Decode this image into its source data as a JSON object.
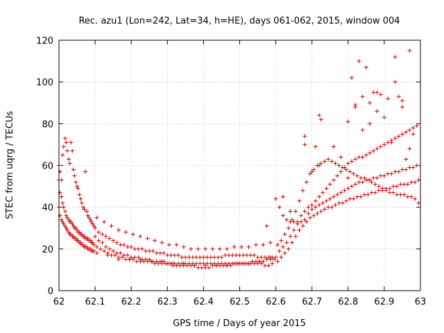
{
  "chart_data": {
    "type": "scatter",
    "title": "Rec. azu1 (Lon=242, Lat=34, h=HE), days 061-062, 2015, window 004",
    "xlabel": "GPS time / Days of year 2015",
    "ylabel": "STEC from uqrg / TECUs",
    "xlim": [
      62,
      63
    ],
    "ylim": [
      0,
      120
    ],
    "xticks": [
      62,
      62.1,
      62.2,
      62.3,
      62.4,
      62.5,
      62.6,
      62.7,
      62.8,
      62.9,
      63
    ],
    "xtick_labels": [
      "62",
      "62.1",
      "62.2",
      "62.3",
      "62.4",
      "62.5",
      "62.6",
      "62.7",
      "62.8",
      "62.9",
      "63"
    ],
    "yticks": [
      0,
      20,
      40,
      60,
      80,
      100,
      120
    ],
    "ytick_labels": [
      "0",
      "20",
      "40",
      "60",
      "80",
      "100",
      "120"
    ],
    "grid": true,
    "marker": "plus",
    "color": "#c80000",
    "x": [
      62.0,
      62.003,
      62.007,
      62.01,
      62.013,
      62.017,
      62.02,
      62.023,
      62.027,
      62.03,
      62.033,
      62.037,
      62.04,
      62.043,
      62.047,
      62.05,
      62.053,
      62.057,
      62.06,
      62.063,
      62.067,
      62.07,
      62.073,
      62.077,
      62.08,
      62.083,
      62.087,
      62.09,
      62.093,
      62.097,
      62.0,
      62.003,
      62.007,
      62.01,
      62.013,
      62.017,
      62.02,
      62.023,
      62.027,
      62.03,
      62.033,
      62.037,
      62.04,
      62.043,
      62.047,
      62.05,
      62.053,
      62.057,
      62.06,
      62.063,
      62.067,
      62.07,
      62.073,
      62.077,
      62.08,
      62.083,
      62.087,
      62.09,
      62.093,
      62.097,
      62.0,
      62.003,
      62.007,
      62.01,
      62.013,
      62.017,
      62.02,
      62.023,
      62.027,
      62.03,
      62.033,
      62.037,
      62.04,
      62.043,
      62.047,
      62.05,
      62.053,
      62.057,
      62.06,
      62.063,
      62.067,
      62.07,
      62.073,
      62.077,
      62.08,
      62.083,
      62.087,
      62.09,
      62.093,
      62.097,
      62.1,
      62.11,
      62.12,
      62.13,
      62.14,
      62.15,
      62.16,
      62.17,
      62.18,
      62.19,
      62.2,
      62.21,
      62.22,
      62.23,
      62.24,
      62.25,
      62.26,
      62.27,
      62.28,
      62.29,
      62.3,
      62.31,
      62.32,
      62.33,
      62.34,
      62.35,
      62.36,
      62.37,
      62.38,
      62.39,
      62.4,
      62.41,
      62.42,
      62.43,
      62.44,
      62.45,
      62.46,
      62.47,
      62.48,
      62.49,
      62.5,
      62.51,
      62.52,
      62.53,
      62.54,
      62.55,
      62.56,
      62.57,
      62.58,
      62.59,
      62.1,
      62.11,
      62.12,
      62.13,
      62.14,
      62.15,
      62.16,
      62.17,
      62.18,
      62.19,
      62.2,
      62.21,
      62.22,
      62.23,
      62.24,
      62.25,
      62.26,
      62.27,
      62.28,
      62.29,
      62.3,
      62.31,
      62.32,
      62.33,
      62.34,
      62.35,
      62.36,
      62.37,
      62.38,
      62.39,
      62.4,
      62.41,
      62.42,
      62.43,
      62.44,
      62.45,
      62.46,
      62.47,
      62.48,
      62.49,
      62.5,
      62.51,
      62.52,
      62.53,
      62.54,
      62.55,
      62.56,
      62.57,
      62.58,
      62.59,
      62.105,
      62.115,
      62.125,
      62.135,
      62.145,
      62.155,
      62.165,
      62.175,
      62.185,
      62.195,
      62.205,
      62.215,
      62.225,
      62.235,
      62.245,
      62.255,
      62.265,
      62.275,
      62.285,
      62.295,
      62.305,
      62.315,
      62.325,
      62.335,
      62.345,
      62.355,
      62.365,
      62.375,
      62.385,
      62.395,
      62.405,
      62.415,
      62.425,
      62.435,
      62.445,
      62.455,
      62.465,
      62.475,
      62.485,
      62.495,
      62.505,
      62.515,
      62.525,
      62.535,
      62.545,
      62.555,
      62.565,
      62.575,
      62.585,
      62.595,
      62.105,
      62.125,
      62.145,
      62.165,
      62.185,
      62.205,
      62.225,
      62.245,
      62.265,
      62.285,
      62.305,
      62.325,
      62.345,
      62.365,
      62.385,
      62.405,
      62.425,
      62.445,
      62.465,
      62.485,
      62.505,
      62.525,
      62.545,
      62.565,
      62.585,
      62.105,
      62.135,
      62.165,
      62.195,
      62.225,
      62.255,
      62.285,
      62.315,
      62.345,
      62.375,
      62.405,
      62.435,
      62.465,
      62.495,
      62.525,
      62.555,
      62.585,
      62.6,
      62.61,
      62.62,
      62.63,
      62.64,
      62.65,
      62.66,
      62.67,
      62.68,
      62.69,
      62.7,
      62.71,
      62.72,
      62.73,
      62.74,
      62.75,
      62.76,
      62.77,
      62.78,
      62.79,
      62.8,
      62.81,
      62.82,
      62.83,
      62.84,
      62.85,
      62.86,
      62.87,
      62.88,
      62.89,
      62.9,
      62.91,
      62.92,
      62.93,
      62.94,
      62.95,
      62.96,
      62.97,
      62.98,
      62.99,
      62.6,
      62.61,
      62.62,
      62.63,
      62.64,
      62.65,
      62.66,
      62.67,
      62.68,
      62.69,
      62.7,
      62.71,
      62.72,
      62.73,
      62.74,
      62.75,
      62.76,
      62.77,
      62.78,
      62.79,
      62.8,
      62.81,
      62.82,
      62.83,
      62.84,
      62.85,
      62.86,
      62.87,
      62.88,
      62.89,
      62.9,
      62.91,
      62.92,
      62.93,
      62.94,
      62.95,
      62.96,
      62.97,
      62.98,
      62.99,
      62.605,
      62.615,
      62.625,
      62.635,
      62.645,
      62.655,
      62.665,
      62.675,
      62.685,
      62.695,
      62.705,
      62.715,
      62.725,
      62.735,
      62.745,
      62.755,
      62.765,
      62.775,
      62.785,
      62.795,
      62.805,
      62.815,
      62.825,
      62.835,
      62.845,
      62.855,
      62.865,
      62.875,
      62.885,
      62.895,
      62.905,
      62.915,
      62.925,
      62.935,
      62.945,
      62.955,
      62.965,
      62.975,
      62.985,
      62.995,
      62.605,
      62.615,
      62.625,
      62.635,
      62.645,
      62.655,
      62.665,
      62.675,
      62.685,
      62.695,
      62.705,
      62.715,
      62.725,
      62.735,
      62.745,
      62.755,
      62.765,
      62.775,
      62.785,
      62.795,
      62.805,
      62.815,
      62.825,
      62.835,
      62.845,
      62.855,
      62.865,
      62.875,
      62.885,
      62.895,
      62.905,
      62.915,
      62.925,
      62.935,
      62.945,
      62.955,
      62.965,
      62.975,
      62.985,
      62.995,
      62.62,
      62.64,
      62.68,
      62.72,
      62.76,
      62.8,
      62.82,
      62.84,
      62.86,
      62.88,
      62.9,
      62.92,
      62.94,
      62.96,
      62.98,
      62.68,
      62.72,
      62.78,
      62.81,
      62.83,
      62.85,
      62.87,
      62.89,
      62.91,
      62.93,
      62.95,
      62.97,
      62.8,
      62.82,
      62.84,
      62.86,
      62.88,
      62.93,
      62.95,
      62.97,
      62.575,
      62.7,
      62.71,
      62.725
    ],
    "y": [
      60,
      57,
      53,
      65,
      69,
      73,
      71,
      67,
      63,
      61,
      71,
      67,
      58,
      55,
      52,
      50,
      49,
      46,
      44,
      42,
      40,
      39,
      57,
      38,
      36,
      35,
      34,
      33,
      32,
      31,
      53,
      47,
      45,
      42,
      40,
      38,
      36,
      35,
      34,
      33,
      33,
      32,
      31,
      30,
      30,
      29,
      28,
      28,
      27,
      27,
      26,
      26,
      25,
      25,
      25,
      24,
      24,
      23,
      23,
      22,
      40,
      36,
      34,
      33,
      32,
      31,
      30,
      29,
      28,
      27,
      27,
      26,
      26,
      25,
      25,
      24,
      24,
      23,
      23,
      22,
      22,
      21,
      21,
      21,
      20,
      20,
      20,
      19,
      19,
      19,
      26,
      24,
      23,
      21,
      20,
      19,
      18,
      18,
      17,
      17,
      16,
      16,
      16,
      15,
      15,
      15,
      14,
      14,
      14,
      14,
      13,
      13,
      13,
      13,
      13,
      13,
      13,
      13,
      13,
      13,
      13,
      13,
      13,
      13,
      13,
      13,
      13,
      13,
      13,
      13,
      13,
      13,
      13,
      13,
      13,
      13,
      13,
      12,
      12,
      13,
      30,
      28,
      27,
      26,
      25,
      24,
      23,
      22,
      22,
      21,
      21,
      20,
      20,
      20,
      19,
      19,
      19,
      18,
      18,
      18,
      17,
      17,
      17,
      17,
      16,
      16,
      16,
      16,
      16,
      16,
      16,
      16,
      16,
      16,
      16,
      16,
      17,
      17,
      17,
      17,
      17,
      17,
      17,
      17,
      17,
      16,
      16,
      16,
      16,
      16,
      21,
      20,
      19,
      18,
      17,
      17,
      16,
      16,
      15,
      15,
      15,
      14,
      14,
      14,
      14,
      14,
      13,
      13,
      13,
      13,
      13,
      12,
      12,
      12,
      12,
      12,
      12,
      12,
      11,
      11,
      11,
      11,
      12,
      12,
      12,
      12,
      12,
      12,
      13,
      13,
      13,
      13,
      13,
      14,
      14,
      14,
      14,
      15,
      15,
      15,
      35,
      33,
      31,
      29,
      28,
      27,
      26,
      25,
      24,
      23,
      22,
      22,
      21,
      20,
      20,
      20,
      20,
      20,
      20,
      21,
      21,
      21,
      22,
      22,
      23,
      18,
      17,
      15,
      15,
      15,
      14,
      14,
      13,
      13,
      12,
      12,
      12,
      12,
      13,
      13,
      14,
      16,
      44,
      40,
      36,
      34,
      33,
      33,
      32,
      33,
      34,
      37,
      39,
      40,
      41,
      42,
      43,
      44,
      45,
      46,
      47,
      48,
      49,
      50,
      51,
      52,
      52,
      53,
      53,
      54,
      54,
      55,
      55,
      56,
      56,
      57,
      57,
      58,
      58,
      59,
      59,
      60,
      16,
      19,
      21,
      23,
      26,
      29,
      33,
      36,
      38,
      40,
      41,
      43,
      45,
      47,
      49,
      51,
      53,
      55,
      57,
      59,
      61,
      62,
      63,
      64,
      64,
      65,
      66,
      67,
      68,
      69,
      70,
      71,
      72,
      73,
      74,
      75,
      76,
      77,
      78,
      79,
      14,
      16,
      18,
      20,
      23,
      26,
      29,
      31,
      33,
      35,
      36,
      37,
      38,
      39,
      40,
      40,
      41,
      42,
      42,
      43,
      44,
      44,
      45,
      45,
      46,
      46,
      47,
      47,
      48,
      48,
      49,
      49,
      50,
      50,
      51,
      51,
      51,
      52,
      52,
      53,
      22,
      24,
      27,
      30,
      34,
      38,
      43,
      48,
      52,
      56,
      58,
      60,
      61,
      62,
      63,
      62,
      61,
      60,
      59,
      58,
      57,
      56,
      55,
      54,
      54,
      53,
      52,
      51,
      50,
      49,
      48,
      47,
      47,
      46,
      46,
      46,
      45,
      45,
      44,
      42,
      45,
      38,
      74,
      84,
      69,
      81,
      88,
      77,
      90,
      86,
      83,
      71,
      93,
      63,
      75,
      70,
      60,
      64,
      102,
      110,
      107,
      95,
      94,
      92,
      112,
      91,
      115,
      54,
      89,
      93,
      80,
      95,
      100,
      88,
      68,
      31,
      57,
      69,
      82
    ]
  }
}
